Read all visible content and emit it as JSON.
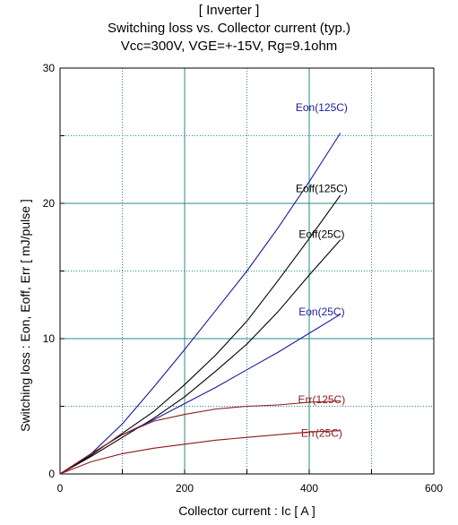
{
  "chart_data": {
    "type": "line",
    "title_lines": [
      "[ Inverter ]",
      "Switching loss  vs.  Collector current  (typ.)",
      "Vcc=300V, VGE=+-15V, Rg=9.1ohm"
    ],
    "xlabel": "Collector current : Ic [ A ]",
    "ylabel": "Switching loss : Eon, Eoff, Err [ mJ/pulse ]",
    "xlim": [
      0,
      600
    ],
    "ylim": [
      0,
      30
    ],
    "x_ticks": [
      "0",
      "200",
      "400",
      "600"
    ],
    "y_ticks": [
      "0",
      "10",
      "20",
      "30"
    ],
    "grid": true,
    "series": [
      {
        "name": "Eon(125C)",
        "color": "#1a1aa0",
        "label_pos": [
          420,
          27.1
        ],
        "x": [
          0,
          50,
          100,
          150,
          200,
          250,
          300,
          350,
          400,
          450
        ],
        "y": [
          0,
          1.5,
          3.7,
          6.4,
          9.2,
          12.1,
          15.0,
          18.2,
          21.6,
          25.2
        ]
      },
      {
        "name": "Eoff(125C)",
        "color": "#000000",
        "label_pos": [
          420,
          21.1
        ],
        "x": [
          0,
          50,
          100,
          150,
          200,
          250,
          300,
          350,
          400,
          450
        ],
        "y": [
          0,
          1.4,
          3.0,
          4.6,
          6.6,
          8.8,
          11.3,
          14.3,
          17.4,
          20.6
        ]
      },
      {
        "name": "Eoff(25C)",
        "color": "#000000",
        "label_pos": [
          420,
          17.7
        ],
        "x": [
          0,
          50,
          100,
          150,
          200,
          250,
          300,
          350,
          400,
          450
        ],
        "y": [
          0,
          1.3,
          2.7,
          4.1,
          5.7,
          7.6,
          9.6,
          12.0,
          14.7,
          17.3
        ]
      },
      {
        "name": "Eon(25C)",
        "color": "#1a1aa0",
        "label_pos": [
          420,
          12.0
        ],
        "x": [
          0,
          50,
          100,
          150,
          200,
          250,
          300,
          350,
          400,
          450
        ],
        "y": [
          0,
          1.5,
          2.9,
          4.0,
          5.2,
          6.4,
          7.7,
          9.0,
          10.4,
          11.8
        ]
      },
      {
        "name": "Err(125C)",
        "color": "#8b1a1a",
        "label_pos": [
          420,
          5.5
        ],
        "x": [
          0,
          50,
          100,
          150,
          200,
          250,
          300,
          350,
          400,
          450
        ],
        "y": [
          0,
          1.5,
          2.9,
          3.9,
          4.4,
          4.8,
          5.0,
          5.1,
          5.3,
          5.4
        ]
      },
      {
        "name": "Err(25C)",
        "color": "#8b1a1a",
        "label_pos": [
          420,
          3.0
        ],
        "x": [
          0,
          50,
          100,
          150,
          200,
          250,
          300,
          350,
          400,
          450
        ],
        "y": [
          0,
          0.9,
          1.5,
          1.9,
          2.2,
          2.5,
          2.7,
          2.9,
          3.1,
          3.2
        ]
      }
    ]
  }
}
